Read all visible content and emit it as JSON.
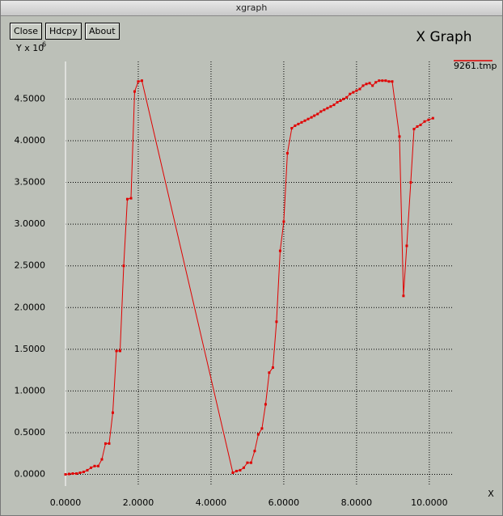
{
  "window": {
    "title": "xgraph",
    "buttons": [
      "Close",
      "Hdcpy",
      "About"
    ]
  },
  "chart_data": {
    "type": "line",
    "title": "X Graph",
    "x_label": "X",
    "y_label": "Y x 10",
    "y_label_exponent": "6",
    "x": [
      0,
      0.1,
      0.2,
      0.3,
      0.4,
      0.5,
      0.6,
      0.7,
      0.8,
      0.9,
      1.0,
      1.1,
      1.2,
      1.3,
      1.4,
      1.5,
      1.6,
      1.7,
      1.8,
      1.9,
      2.0,
      2.1,
      4.6,
      4.7,
      4.8,
      4.9,
      5.0,
      5.1,
      5.2,
      5.3,
      5.4,
      5.5,
      5.6,
      5.7,
      5.8,
      5.9,
      6.0,
      6.1,
      6.22,
      6.31,
      6.4,
      6.49,
      6.58,
      6.67,
      6.76,
      6.84,
      6.93,
      7.02,
      7.11,
      7.2,
      7.29,
      7.38,
      7.47,
      7.56,
      7.64,
      7.73,
      7.82,
      7.91,
      8.0,
      8.09,
      8.18,
      8.27,
      8.36,
      8.44,
      8.53,
      8.62,
      8.71,
      8.8,
      8.89,
      8.98,
      9.18,
      9.29,
      9.38,
      9.49,
      9.58,
      9.67,
      9.76,
      9.87,
      9.98,
      10.1
    ],
    "series": [
      {
        "name": "9261.tmp",
        "color": "#e00000",
        "values": [
          0,
          0.005,
          0.01,
          0.01,
          0.02,
          0.03,
          0.05,
          0.08,
          0.1,
          0.1,
          0.18,
          0.37,
          0.37,
          0.74,
          1.48,
          1.48,
          2.5,
          3.3,
          3.31,
          4.59,
          4.71,
          4.72,
          0.02,
          0.04,
          0.05,
          0.08,
          0.14,
          0.14,
          0.28,
          0.48,
          0.55,
          0.84,
          1.22,
          1.28,
          1.83,
          2.68,
          3.03,
          3.85,
          4.15,
          4.18,
          4.2,
          4.22,
          4.24,
          4.26,
          4.28,
          4.3,
          4.32,
          4.35,
          4.37,
          4.39,
          4.41,
          4.43,
          4.46,
          4.48,
          4.5,
          4.52,
          4.56,
          4.58,
          4.6,
          4.62,
          4.66,
          4.68,
          4.69,
          4.66,
          4.7,
          4.72,
          4.72,
          4.72,
          4.71,
          4.71,
          4.05,
          2.14,
          2.74,
          3.5,
          4.14,
          4.17,
          4.19,
          4.23,
          4.25,
          4.27
        ]
      }
    ],
    "xlim": [
      0,
      10.67
    ],
    "ylim": [
      -0.14,
      4.95
    ],
    "xticks": [
      {
        "value": 0,
        "label": "0.0000"
      },
      {
        "value": 2,
        "label": "2.0000"
      },
      {
        "value": 4,
        "label": "4.0000"
      },
      {
        "value": 6,
        "label": "6.0000"
      },
      {
        "value": 8,
        "label": "8.0000"
      },
      {
        "value": 10,
        "label": "10.0000"
      }
    ],
    "yticks": [
      {
        "value": 0,
        "label": "0.0000"
      },
      {
        "value": 0.5,
        "label": "0.5000"
      },
      {
        "value": 1,
        "label": "1.0000"
      },
      {
        "value": 1.5,
        "label": "1.5000"
      },
      {
        "value": 2,
        "label": "2.0000"
      },
      {
        "value": 2.5,
        "label": "2.5000"
      },
      {
        "value": 3,
        "label": "3.0000"
      },
      {
        "value": 3.5,
        "label": "3.5000"
      },
      {
        "value": 4,
        "label": "4.0000"
      },
      {
        "value": 4.5,
        "label": "4.5000"
      }
    ],
    "grid": true,
    "legend": "top-right"
  }
}
